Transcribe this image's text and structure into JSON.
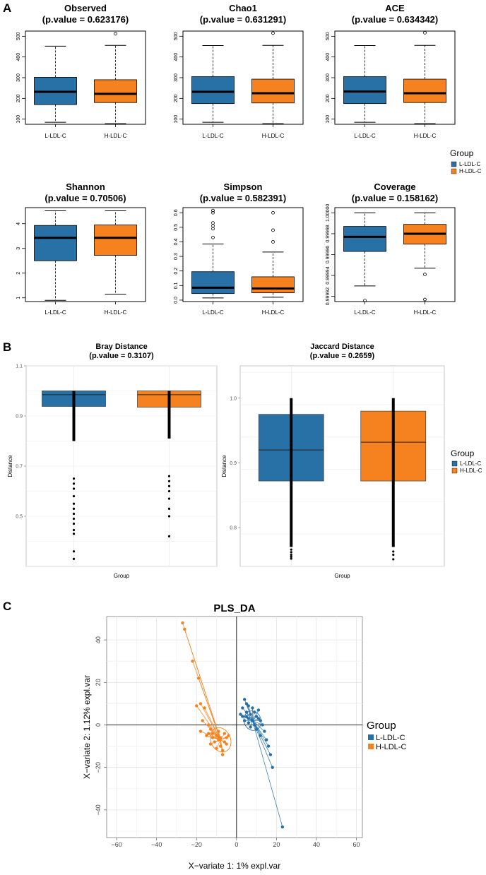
{
  "colors": {
    "group_low": "#2771a7",
    "group_high": "#f5821f",
    "outlier_dark": "#000000"
  },
  "panel_labels": {
    "a": "A",
    "b": "B",
    "c": "C"
  },
  "legend": {
    "title": "Group",
    "items": [
      {
        "label": "L-LDL-C",
        "color": "#2771a7"
      },
      {
        "label": "H-LDL-C",
        "color": "#f5821f"
      }
    ]
  },
  "chart_data": [
    {
      "type": "box",
      "panel": "A",
      "title": "Observed",
      "subtitle": "(p.value = 0.623176)",
      "categories": [
        "L-LDL-C",
        "H-LDL-C"
      ],
      "ylim": [
        75,
        525
      ],
      "yticks": [
        100,
        200,
        300,
        400,
        500
      ],
      "boxes": [
        {
          "q1": 170,
          "median": 232,
          "q3": 302,
          "whisker_low": 85,
          "whisker_high": 452,
          "outliers": []
        },
        {
          "q1": 180,
          "median": 222,
          "q3": 290,
          "whisker_low": 78,
          "whisker_high": 456,
          "outliers": [
            512
          ]
        }
      ]
    },
    {
      "type": "box",
      "panel": "A",
      "title": "Chao1",
      "subtitle": "(p.value = 0.631291)",
      "categories": [
        "L-LDL-C",
        "H-LDL-C"
      ],
      "ylim": [
        75,
        525
      ],
      "yticks": [
        100,
        200,
        300,
        400,
        500
      ],
      "boxes": [
        {
          "q1": 175,
          "median": 232,
          "q3": 305,
          "whisker_low": 85,
          "whisker_high": 455,
          "outliers": []
        },
        {
          "q1": 178,
          "median": 225,
          "q3": 293,
          "whisker_low": 78,
          "whisker_high": 456,
          "outliers": [
            515
          ]
        }
      ]
    },
    {
      "type": "box",
      "panel": "A",
      "title": "ACE",
      "subtitle": "(p.value = 0.634342)",
      "categories": [
        "L-LDL-C",
        "H-LDL-C"
      ],
      "ylim": [
        75,
        525
      ],
      "yticks": [
        100,
        200,
        300,
        400,
        500
      ],
      "boxes": [
        {
          "q1": 175,
          "median": 233,
          "q3": 305,
          "whisker_low": 85,
          "whisker_high": 455,
          "outliers": []
        },
        {
          "q1": 180,
          "median": 225,
          "q3": 293,
          "whisker_low": 78,
          "whisker_high": 456,
          "outliers": [
            517
          ]
        }
      ]
    },
    {
      "type": "box",
      "panel": "A",
      "title": "Shannon",
      "subtitle": "(p.value = 0.70506)",
      "categories": [
        "L-LDL-C",
        "H-LDL-C"
      ],
      "ylim": [
        0.85,
        4.65
      ],
      "yticks": [
        1,
        2,
        3,
        4
      ],
      "boxes": [
        {
          "q1": 2.5,
          "median": 3.43,
          "q3": 3.93,
          "whisker_low": 0.9,
          "whisker_high": 4.52,
          "outliers": []
        },
        {
          "q1": 2.72,
          "median": 3.43,
          "q3": 3.95,
          "whisker_low": 1.15,
          "whisker_high": 4.52,
          "outliers": []
        }
      ]
    },
    {
      "type": "box",
      "panel": "A",
      "title": "Simpson",
      "subtitle": "(p.value = 0.582391)",
      "categories": [
        "L-LDL-C",
        "H-LDL-C"
      ],
      "ylim": [
        -0.01,
        0.635
      ],
      "yticks": [
        0.0,
        0.1,
        0.2,
        0.3,
        0.4,
        0.5,
        0.6
      ],
      "ytick_labels": [
        "0.0",
        "0.1",
        "0.2",
        "0.3",
        "0.4",
        "0.5",
        "0.6"
      ],
      "boxes": [
        {
          "q1": 0.045,
          "median": 0.085,
          "q3": 0.195,
          "whisker_low": 0.015,
          "whisker_high": 0.385,
          "outliers": [
            0.43,
            0.49,
            0.51,
            0.53,
            0.6,
            0.615
          ]
        },
        {
          "q1": 0.05,
          "median": 0.08,
          "q3": 0.16,
          "whisker_low": 0.02,
          "whisker_high": 0.33,
          "outliers": [
            0.4,
            0.48,
            0.6
          ]
        }
      ]
    },
    {
      "type": "box",
      "panel": "A",
      "title": "Coverage",
      "subtitle": "(p.value = 0.158162)",
      "categories": [
        "L-LDL-C",
        "H-LDL-C"
      ],
      "ylim": [
        0.999915,
        1.000005
      ],
      "yticks": [
        0.99992,
        0.99994,
        0.99996,
        0.99998,
        1.0
      ],
      "ytick_labels": [
        "0.99992",
        "0.99994",
        "0.99996",
        "0.99998",
        "1.00000"
      ],
      "boxes": [
        {
          "q1": 0.999963,
          "median": 0.999977,
          "q3": 0.999987,
          "whisker_low": 0.99993,
          "whisker_high": 1.0,
          "outliers": [
            0.999916
          ]
        },
        {
          "q1": 0.99997,
          "median": 0.99998,
          "q3": 0.999989,
          "whisker_low": 0.999947,
          "whisker_high": 1.0,
          "outliers": [
            0.999941,
            0.999917
          ]
        }
      ]
    },
    {
      "type": "box",
      "panel": "B",
      "title": "Bray Distance",
      "subtitle": "(p.value = 0.3107)",
      "xlabel": "Group",
      "ylabel": "Distance",
      "categories": [
        "L-LDL-C",
        "H-LDL-C"
      ],
      "show_categories": false,
      "ylim": [
        0.3,
        1.1
      ],
      "yticks": [
        0.5,
        0.7,
        0.9,
        1.1
      ],
      "ytick_labels": [
        "0.5",
        "0.7",
        "0.9",
        "1.1"
      ],
      "boxes": [
        {
          "q1": 0.938,
          "median": 0.985,
          "q3": 1.0,
          "whisker_low": 0.8,
          "whisker_high": 1.0,
          "outliers": [
            0.33,
            0.36,
            0.43,
            0.445,
            0.47,
            0.49,
            0.51,
            0.53,
            0.55,
            0.58,
            0.61,
            0.63,
            0.65
          ]
        },
        {
          "q1": 0.935,
          "median": 0.985,
          "q3": 1.0,
          "whisker_low": 0.81,
          "whisker_high": 1.0,
          "outliers": [
            0.42,
            0.5,
            0.53,
            0.57,
            0.6,
            0.62,
            0.64,
            0.66
          ]
        }
      ]
    },
    {
      "type": "box",
      "panel": "B",
      "title": "Jaccard Distance",
      "subtitle": "(p.value = 0.2659)",
      "xlabel": "Group",
      "ylabel": "Distance",
      "categories": [
        "L-LDL-C",
        "H-LDL-C"
      ],
      "show_categories": false,
      "ylim": [
        0.74,
        1.05
      ],
      "yticks": [
        0.8,
        0.9,
        1.0
      ],
      "ytick_labels": [
        "0.8",
        "0.9",
        "1.0"
      ],
      "boxes": [
        {
          "q1": 0.872,
          "median": 0.92,
          "q3": 0.975,
          "whisker_low": 0.77,
          "whisker_high": 1.0,
          "outliers": [
            0.752,
            0.755,
            0.758,
            0.762,
            0.766
          ]
        },
        {
          "q1": 0.872,
          "median": 0.932,
          "q3": 0.98,
          "whisker_low": 0.77,
          "whisker_high": 1.0,
          "outliers": [
            0.751,
            0.758,
            0.763
          ]
        }
      ]
    },
    {
      "type": "scatter",
      "panel": "C",
      "title": "PLS_DA",
      "xlabel": "X−variate 1: 1% expl.var",
      "ylabel": "X−variate 2: 1.12% expl.var",
      "xlim": [
        -65,
        63
      ],
      "ylim": [
        -53,
        51
      ],
      "xticks": [
        -60,
        -40,
        -20,
        0,
        20,
        40,
        60
      ],
      "yticks": [
        -40,
        -20,
        0,
        20,
        40
      ],
      "ytick_labels": [
        "−40",
        "−20",
        "0",
        "20",
        "40"
      ],
      "series": [
        {
          "name": "L-LDL-C",
          "centroid": [
            8,
            2
          ],
          "points": [
            [
              4,
              12
            ],
            [
              5,
              10
            ],
            [
              3,
              8
            ],
            [
              6,
              9
            ],
            [
              8,
              8
            ],
            [
              5,
              6
            ],
            [
              7,
              5
            ],
            [
              9,
              6
            ],
            [
              10,
              4
            ],
            [
              3,
              4
            ],
            [
              6,
              3
            ],
            [
              8,
              2
            ],
            [
              4,
              2
            ],
            [
              11,
              3
            ],
            [
              12,
              2
            ],
            [
              6,
              1
            ],
            [
              9,
              0
            ],
            [
              13,
              0
            ],
            [
              7,
              -1
            ],
            [
              10,
              -2
            ],
            [
              14,
              -3
            ],
            [
              12,
              -5
            ],
            [
              15,
              -7
            ],
            [
              16,
              -10
            ],
            [
              17,
              -14
            ],
            [
              18,
              -20
            ],
            [
              23,
              -48
            ],
            [
              2,
              5
            ],
            [
              11,
              7
            ],
            [
              5,
              4
            ]
          ]
        },
        {
          "name": "H-LDL-C",
          "centroid": [
            -8,
            -7
          ],
          "points": [
            [
              -27,
              48
            ],
            [
              -26,
              45
            ],
            [
              -22,
              30
            ],
            [
              -19,
              22
            ],
            [
              -18,
              10
            ],
            [
              -16,
              8
            ],
            [
              -20,
              9
            ],
            [
              -17,
              2
            ],
            [
              -14,
              0
            ],
            [
              -13,
              -2
            ],
            [
              -12,
              -4
            ],
            [
              -10,
              -5
            ],
            [
              -9,
              -7
            ],
            [
              -11,
              -8
            ],
            [
              -8,
              -10
            ],
            [
              -7,
              -12
            ],
            [
              -6,
              -8
            ],
            [
              -5,
              -6
            ],
            [
              -4,
              -5
            ],
            [
              -6,
              -4
            ],
            [
              -9,
              -3
            ],
            [
              -12,
              -6
            ],
            [
              -15,
              -5
            ],
            [
              -7,
              -14
            ],
            [
              -10,
              -11
            ],
            [
              -13,
              -9
            ],
            [
              -14,
              -4
            ],
            [
              -18,
              -3
            ],
            [
              -5,
              -9
            ],
            [
              -8,
              -6
            ]
          ]
        }
      ]
    }
  ]
}
